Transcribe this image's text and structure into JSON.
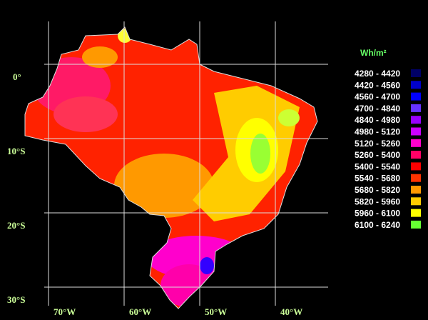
{
  "legend": {
    "title": "Wh/m²",
    "items": [
      {
        "label": "4280 - 4420",
        "color": "#000066"
      },
      {
        "label": "4420 - 4560",
        "color": "#0000cc"
      },
      {
        "label": "4560 - 4700",
        "color": "#0000ff"
      },
      {
        "label": "4700 - 4840",
        "color": "#6633ff"
      },
      {
        "label": "4840 - 4980",
        "color": "#9900ff"
      },
      {
        "label": "4980 - 5120",
        "color": "#cc00ff"
      },
      {
        "label": "5120 - 5260",
        "color": "#ff00cc"
      },
      {
        "label": "5260 - 5400",
        "color": "#ff0066"
      },
      {
        "label": "5400 - 5540",
        "color": "#ff0000"
      },
      {
        "label": "5540 - 5680",
        "color": "#ff3300"
      },
      {
        "label": "5680 - 5820",
        "color": "#ff9900"
      },
      {
        "label": "5820 - 5960",
        "color": "#ffcc00"
      },
      {
        "label": "5960 - 6100",
        "color": "#ffff00"
      },
      {
        "label": "6100 - 6240",
        "color": "#66ff33"
      }
    ]
  },
  "grid": {
    "latitudes": [
      "0°",
      "10°S",
      "20°S",
      "30°S"
    ],
    "longitudes": [
      "70°W",
      "60°W",
      "50°W",
      "40°W"
    ]
  }
}
